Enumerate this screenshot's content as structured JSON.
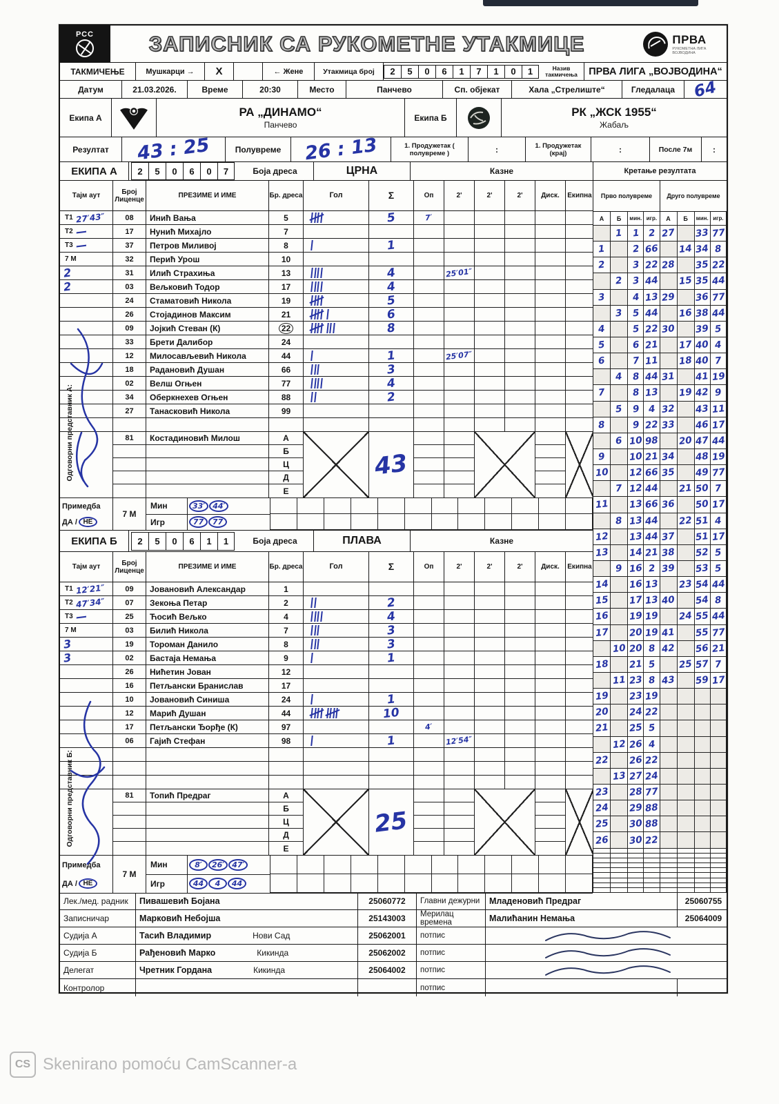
{
  "camscanner": {
    "icon": "CS",
    "text": "Skenirano pomoću CamScanner-a"
  },
  "header": {
    "title": "ЗАПИСНИК СА РУКОМЕТНЕ УТАКМИЦЕ",
    "rss_text": "РСС",
    "league": {
      "name": "ПРВА",
      "sub1": "РУКОМЕТНА ЛИГА",
      "sub2": "ВОЈВОДИНА"
    }
  },
  "competition": {
    "label": "ТАКМИЧЕЊЕ",
    "men_label": "Мушкарци →",
    "men_mark": "X",
    "women_mark": "",
    "women_label": "← Жене",
    "match_no_label": "Утакмица број",
    "match_no_digits": [
      "2",
      "5",
      "0",
      "6",
      "1",
      "7",
      "1",
      "0",
      "1"
    ],
    "name_label": "Назив такмичења",
    "name_value": "ПРВА ЛИГА „ВОЈВОДИНА“"
  },
  "info": {
    "date_label": "Датум",
    "date": "21.03.2026.",
    "time_label": "Време",
    "time": "20:30",
    "place_label": "Место",
    "place": "Панчево",
    "venue_label": "Сп. објекат",
    "venue": "Хала „Стрелиште“",
    "attendance_label": "Гледалаца",
    "attendance": "64"
  },
  "teams": {
    "a_label": "Екипа А",
    "a_name": "РА „ДИНАМО“",
    "a_city": "Панчево",
    "b_label": "Екипа Б",
    "b_name": "РК „ЖСК 1955“",
    "b_city": "Жабаљ"
  },
  "result": {
    "label": "Резултат",
    "final": "43 : 25",
    "half_label": "Полувреме",
    "half": "26 : 13",
    "ot1_half_label": "1. Продужетак ( полувреме )",
    "ot1_half": ":",
    "ot1_end_label": "1. Продужетак (крај)",
    "ot1_end": ":",
    "after7m_label": "После 7м",
    "after7m": ":"
  },
  "roster_columns": [
    "Тајм аут",
    "Број Лиценце",
    "ПРЕЗИМЕ И ИМЕ",
    "Бр. дреса",
    "Гол",
    "Σ",
    "Оп",
    "2'",
    "2'",
    "2'",
    "Диск.",
    "Екипна"
  ],
  "team_a": {
    "band_label": "ЕКИПА А",
    "code_digits": [
      "2",
      "5",
      "0",
      "6",
      "0",
      "7"
    ],
    "jersey_label": "Боја дреса",
    "jersey_color": "ЦРНА",
    "penalties_label": "Казне",
    "rep_label": "Одговорни представник А:",
    "players": [
      {
        "to": "T1",
        "to_hw": "27′43″",
        "lic": "08",
        "name": "Инић Вања",
        "jersey": "5",
        "goals": 5,
        "sum": "5",
        "op": "7′"
      },
      {
        "to": "T2",
        "to_hw": "—",
        "lic": "17",
        "name": "Нунић Михајло",
        "jersey": "7"
      },
      {
        "to": "T3",
        "to_hw": "—",
        "lic": "37",
        "name": "Петров Миливој",
        "jersey": "8",
        "goals": 1,
        "sum": "1"
      },
      {
        "to": "7 М",
        "lic": "32",
        "name": "Перић Урош",
        "jersey": "10"
      },
      {
        "to_hw": "2",
        "lic": "31",
        "name": "Илић Страхиња",
        "jersey": "13",
        "goals": 4,
        "sum": "4",
        "p2a": "25′01″"
      },
      {
        "to_hw": "2",
        "lic": "03",
        "name": "Вељковић Тодор",
        "jersey": "17",
        "goals": 4,
        "sum": "4"
      },
      {
        "lic": "24",
        "name": "Стаматовић Никола",
        "jersey": "19",
        "goals": 5,
        "sum": "5"
      },
      {
        "lic": "26",
        "name": "Стојадинов Максим",
        "jersey": "21",
        "goals": 6,
        "sum": "6"
      },
      {
        "lic": "09",
        "name": "Јојкић Стеван (К)",
        "jersey": "22",
        "jersey_circled": true,
        "goals": 8,
        "sum": "8"
      },
      {
        "lic": "33",
        "name": "Брети Далибор",
        "jersey": "24"
      },
      {
        "lic": "12",
        "name": "Милосављевић Никола",
        "jersey": "44",
        "goals": 1,
        "sum": "1",
        "p2a": "25′07″"
      },
      {
        "lic": "18",
        "name": "Радановић Душан",
        "jersey": "66",
        "goals": 3,
        "sum": "3"
      },
      {
        "lic": "02",
        "name": "Велш Огњен",
        "jersey": "77",
        "goals": 4,
        "sum": "4"
      },
      {
        "lic": "34",
        "name": "Оберкнехев Огњен",
        "jersey": "88",
        "goals": 2,
        "sum": "2"
      },
      {
        "lic": "27",
        "name": "Танасковић Никола",
        "jersey": "99"
      }
    ],
    "official": {
      "lic": "81",
      "name": "Костадиновић Милош",
      "rows": [
        "А",
        "Б",
        "Ц",
        "Д",
        "Е"
      ],
      "sum": "43"
    },
    "remark": {
      "label": "Примедба",
      "yes": "ДА",
      "no": "НЕ",
      "seven": "7 М",
      "min_label": "Мин",
      "igr_label": "Игр",
      "min": [
        "33′",
        "44′"
      ],
      "igr": [
        "77",
        "77"
      ]
    }
  },
  "team_b": {
    "band_label": "ЕКИПА Б",
    "code_digits": [
      "2",
      "5",
      "0",
      "6",
      "1",
      "1"
    ],
    "jersey_label": "Боја дреса",
    "jersey_color": "ПЛАВА",
    "penalties_label": "Казне",
    "rep_label": "Одговорни представник Б:",
    "players": [
      {
        "to": "T1",
        "to_hw": "12′21″",
        "lic": "09",
        "name": "Јовановић Александар",
        "jersey": "1"
      },
      {
        "to": "T2",
        "to_hw": "47′34″",
        "lic": "07",
        "name": "Зекоња Петар",
        "jersey": "2",
        "goals": 2,
        "sum": "2"
      },
      {
        "to": "T3",
        "to_hw": "—",
        "lic": "25",
        "name": "Ћосић Вељко",
        "jersey": "4",
        "goals": 4,
        "sum": "4"
      },
      {
        "to": "7 М",
        "lic": "03",
        "name": "Билић Никола",
        "jersey": "7",
        "goals": 3,
        "sum": "3"
      },
      {
        "to_hw": "3",
        "lic": "19",
        "name": "Тороман Данило",
        "jersey": "8",
        "goals": 3,
        "sum": "3"
      },
      {
        "to_hw": "3",
        "lic": "02",
        "name": "Бастаја Немања",
        "jersey": "9",
        "goals": 1,
        "sum": "1"
      },
      {
        "lic": "26",
        "name": "Нићетин Јован",
        "jersey": "12"
      },
      {
        "lic": "16",
        "name": "Петљански Бранислав",
        "jersey": "17"
      },
      {
        "lic": "10",
        "name": "Јовановић Синиша",
        "jersey": "24",
        "goals": 1,
        "sum": "1"
      },
      {
        "lic": "12",
        "name": "Марић Душан",
        "jersey": "44",
        "goals": 10,
        "sum": "10"
      },
      {
        "lic": "17",
        "name": "Петљански Ђорђе (К)",
        "jersey": "97",
        "op": "4′"
      },
      {
        "lic": "06",
        "name": "Гајић Стефан",
        "jersey": "98",
        "goals": 1,
        "sum": "1",
        "p2a": "12′54″"
      }
    ],
    "official": {
      "lic": "81",
      "name": "Топић Предраг",
      "rows": [
        "А",
        "Б",
        "Ц",
        "Д",
        "Е"
      ],
      "sum": "25"
    },
    "remark": {
      "label": "Примедба",
      "yes": "ДА",
      "no": "НЕ",
      "seven": "7 М",
      "min_label": "Мин",
      "igr_label": "Игр",
      "min": [
        "8′",
        "26′",
        "47′"
      ],
      "igr": [
        "44",
        "4",
        "44"
      ]
    }
  },
  "score_grid": {
    "title": "Кретање резултата",
    "first_half": "Прво полувреме",
    "second_half": "Друго полувреме",
    "columns": [
      "А",
      "Б",
      "мин.",
      "игр."
    ],
    "rows": [
      [
        "",
        "1",
        "1",
        "2",
        "27",
        "",
        "33",
        "77"
      ],
      [
        "1",
        "",
        "2",
        "66",
        "",
        "14",
        "34",
        "8"
      ],
      [
        "2",
        "",
        "3",
        "22",
        "28",
        "",
        "35",
        "22"
      ],
      [
        "",
        "2",
        "3",
        "44",
        "",
        "15",
        "35",
        "44"
      ],
      [
        "3",
        "",
        "4",
        "13",
        "29",
        "",
        "36",
        "77"
      ],
      [
        "",
        "3",
        "5",
        "44",
        "",
        "16",
        "38",
        "44"
      ],
      [
        "4",
        "",
        "5",
        "22",
        "30",
        "",
        "39",
        "5"
      ],
      [
        "5",
        "",
        "6",
        "21",
        "",
        "17",
        "40",
        "4"
      ],
      [
        "6",
        "",
        "7",
        "11",
        "",
        "18",
        "40",
        "7"
      ],
      [
        "",
        "4",
        "8",
        "44",
        "31",
        "",
        "41",
        "19"
      ],
      [
        "7",
        "",
        "8",
        "13",
        "",
        "19",
        "42",
        "9"
      ],
      [
        "",
        "5",
        "9",
        "4",
        "32",
        "",
        "43",
        "11"
      ],
      [
        "8",
        "",
        "9",
        "22",
        "33",
        "",
        "46",
        "17"
      ],
      [
        "",
        "6",
        "10",
        "98",
        "",
        "20",
        "47",
        "44"
      ],
      [
        "9",
        "",
        "10",
        "21",
        "34",
        "",
        "48",
        "19"
      ],
      [
        "10",
        "",
        "12",
        "66",
        "35",
        "",
        "49",
        "77"
      ],
      [
        "",
        "7",
        "12",
        "44",
        "",
        "21",
        "50",
        "7"
      ],
      [
        "11",
        "",
        "13",
        "66",
        "36",
        "",
        "50",
        "17"
      ],
      [
        "",
        "8",
        "13",
        "44",
        "",
        "22",
        "51",
        "4"
      ],
      [
        "12",
        "",
        "13",
        "44",
        "37",
        "",
        "51",
        "17"
      ],
      [
        "13",
        "",
        "14",
        "21",
        "38",
        "",
        "52",
        "5"
      ],
      [
        "",
        "9",
        "16",
        "2",
        "39",
        "",
        "53",
        "5"
      ],
      [
        "14",
        "",
        "16",
        "13",
        "",
        "23",
        "54",
        "44"
      ],
      [
        "15",
        "",
        "17",
        "13",
        "40",
        "",
        "54",
        "8"
      ],
      [
        "16",
        "",
        "19",
        "19",
        "",
        "24",
        "55",
        "44"
      ],
      [
        "17",
        "",
        "20",
        "19",
        "41",
        "",
        "55",
        "77"
      ],
      [
        "",
        "10",
        "20",
        "8",
        "42",
        "",
        "56",
        "21"
      ],
      [
        "18",
        "",
        "21",
        "5",
        "",
        "25",
        "57",
        "7"
      ],
      [
        "",
        "11",
        "23",
        "8",
        "43",
        "",
        "59",
        "17"
      ],
      [
        "19",
        "",
        "23",
        "19",
        "",
        "",
        "",
        ""
      ],
      [
        "20",
        "",
        "24",
        "22",
        "",
        "",
        "",
        ""
      ],
      [
        "21",
        "",
        "25",
        "5",
        "",
        "",
        "",
        ""
      ],
      [
        "",
        "12",
        "26",
        "4",
        "",
        "",
        "",
        ""
      ],
      [
        "22",
        "",
        "26",
        "22",
        "",
        "",
        "",
        ""
      ],
      [
        "",
        "13",
        "27",
        "24",
        "",
        "",
        "",
        ""
      ],
      [
        "23",
        "",
        "28",
        "77",
        "",
        "",
        "",
        ""
      ],
      [
        "24",
        "",
        "29",
        "88",
        "",
        "",
        "",
        ""
      ],
      [
        "25",
        "",
        "30",
        "88",
        "",
        "",
        "",
        ""
      ],
      [
        "26",
        "",
        "30",
        "22",
        "",
        "",
        "",
        ""
      ]
    ]
  },
  "bottom": {
    "rows": [
      {
        "label": "Лек./мед. радник",
        "name": "Пивашевић Бојана",
        "city": "",
        "id": "25060772",
        "role": "Главни дежурни",
        "right_name": "Младеновић Предраг",
        "right_id": "25060755",
        "signature": false
      },
      {
        "label": "Записничар",
        "name": "Марковић Небојша",
        "city": "",
        "id": "25143003",
        "role": "Мерилац времена",
        "right_name": "Малићанин Немања",
        "right_id": "25064009",
        "signature": false
      },
      {
        "label": "Судија А",
        "name": "Тасић Владимир",
        "city": "Нови Сад",
        "id": "25062001",
        "role": "потпис",
        "right_name": "",
        "right_id": "",
        "signature": true
      },
      {
        "label": "Судија Б",
        "name": "Рађеновић Марко",
        "city": "Кикинда",
        "id": "25062002",
        "role": "потпис",
        "right_name": "",
        "right_id": "",
        "signature": true
      },
      {
        "label": "Делегат",
        "name": "Чретник Гордана",
        "city": "Кикинда",
        "id": "25064002",
        "role": "потпис",
        "right_name": "",
        "right_id": "",
        "signature": true
      },
      {
        "label": "Контролор",
        "name": "",
        "city": "",
        "id": "",
        "role": "потпис",
        "right_name": "",
        "right_id": "",
        "signature": false
      }
    ]
  }
}
